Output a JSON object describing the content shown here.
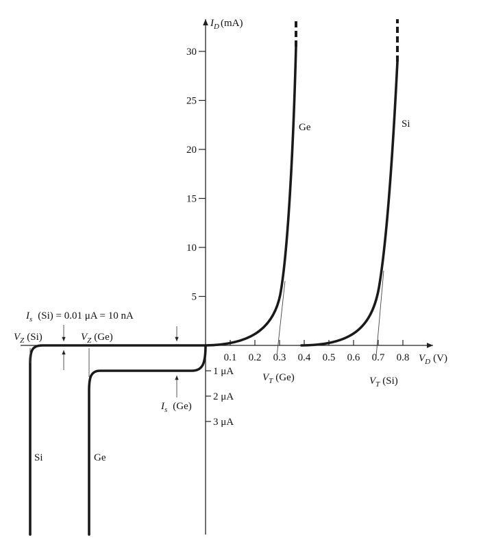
{
  "y_axis": {
    "symbol": "I",
    "subscript": "D",
    "unit": "(mA)",
    "ticks": [
      "5",
      "10",
      "15",
      "20",
      "25",
      "30"
    ]
  },
  "x_axis": {
    "symbol": "V",
    "subscript": "D",
    "unit": "(V)",
    "ticks": [
      "0.1",
      "0.2",
      "0.3",
      "0.4",
      "0.5",
      "0.6",
      "0.7",
      "0.8"
    ]
  },
  "reverse_ticks": [
    "1 μA",
    "2 μA",
    "3 μA"
  ],
  "curve_labels": {
    "ge_forward": "Ge",
    "si_forward": "Si",
    "si_reverse": "Si",
    "ge_reverse": "Ge"
  },
  "threshold": {
    "ge": {
      "symbol": "V",
      "subscript": "T",
      "material": "(Ge)"
    },
    "si": {
      "symbol": "V",
      "subscript": "T",
      "material": "(Si)"
    }
  },
  "zener": {
    "si": {
      "symbol": "V",
      "subscript": "Z",
      "material": "(Si)"
    },
    "ge": {
      "symbol": "V",
      "subscript": "Z",
      "material": "(Ge)"
    }
  },
  "saturation": {
    "si": {
      "symbol": "I",
      "subscript": "s",
      "text": "(Si) = 0.01 μA = 10 nA"
    },
    "ge": {
      "symbol": "I",
      "subscript": "s",
      "material": "(Ge)"
    }
  }
}
